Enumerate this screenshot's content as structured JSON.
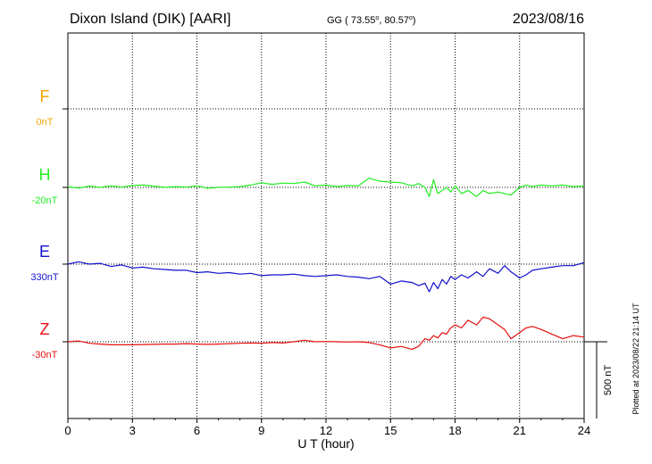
{
  "header": {
    "station": "Dixon Island (DIK)  [AARI]",
    "coords": "GG ( 73.55",
    "coords_mid": ",  80.57",
    "coords_end": ")",
    "date": "2023/08/16"
  },
  "side_note": "Plotted at 2023/08/22 21:14 UT",
  "colors": {
    "F": "#f5a500",
    "H": "#22ee22",
    "E": "#1010cc",
    "Z": "#e81010",
    "axis": "#000000"
  },
  "chart_data": {
    "type": "line",
    "xlabel": "U T (hour)",
    "xlim": [
      0,
      24
    ],
    "x_ticks": [
      "0",
      "3",
      "6",
      "9",
      "12",
      "15",
      "18",
      "21",
      "24"
    ],
    "scale_label": "500 nT",
    "scale_nT": 500,
    "channels": [
      {
        "name": "F",
        "offset_label": "0nT",
        "color_key": "F",
        "baseline_nT": 0
      },
      {
        "name": "H",
        "offset_label": "-20nT",
        "color_key": "H",
        "baseline_nT": -20
      },
      {
        "name": "E",
        "offset_label": "330nT",
        "color_key": "E",
        "baseline_nT": 330
      },
      {
        "name": "Z",
        "offset_label": "-30nT",
        "color_key": "Z",
        "baseline_nT": -30
      }
    ],
    "series": [
      {
        "name": "H",
        "x": [
          0,
          0.5,
          1,
          1.5,
          2,
          2.5,
          3,
          3.5,
          4,
          4.5,
          5,
          5.5,
          6,
          6.5,
          7,
          7.5,
          8,
          8.5,
          9,
          9.5,
          10,
          10.5,
          11,
          11.5,
          12,
          12.5,
          13,
          13.5,
          14,
          14.5,
          15,
          15.5,
          16,
          16.3,
          16.6,
          16.8,
          17,
          17.2,
          17.4,
          17.6,
          17.8,
          18,
          18.3,
          18.6,
          19,
          19.3,
          19.6,
          20,
          20.3,
          20.6,
          21,
          21.3,
          21.6,
          22,
          22.5,
          23,
          23.5,
          24
        ],
        "values": [
          -15,
          -25,
          -12,
          -20,
          -10,
          -18,
          -8,
          -5,
          -12,
          -20,
          -15,
          -18,
          -10,
          -25,
          -20,
          -18,
          -15,
          -5,
          10,
          0,
          8,
          5,
          15,
          -10,
          -5,
          -15,
          -8,
          -10,
          40,
          20,
          15,
          10,
          -10,
          5,
          -20,
          -80,
          30,
          -60,
          -40,
          -20,
          -50,
          -10,
          -60,
          -40,
          -80,
          -40,
          -60,
          -50,
          -60,
          -70,
          -20,
          -5,
          -15,
          -5,
          -10,
          -5,
          -15,
          -10
        ]
      },
      {
        "name": "E",
        "x": [
          0,
          0.5,
          1,
          1.5,
          2,
          2.5,
          3,
          3.5,
          4,
          4.5,
          5,
          5.5,
          6,
          6.5,
          7,
          7.5,
          8,
          8.5,
          9,
          9.5,
          10,
          10.5,
          11,
          11.5,
          12,
          12.5,
          13,
          13.5,
          14,
          14.5,
          15,
          15.5,
          16,
          16.3,
          16.6,
          16.8,
          17,
          17.2,
          17.4,
          17.6,
          17.8,
          18,
          18.3,
          18.6,
          19,
          19.3,
          19.6,
          20,
          20.3,
          20.6,
          21,
          21.3,
          21.6,
          22,
          22.5,
          23,
          23.5,
          24
        ],
        "values": [
          330,
          345,
          330,
          335,
          315,
          325,
          305,
          310,
          300,
          295,
          290,
          290,
          275,
          280,
          270,
          275,
          265,
          270,
          255,
          260,
          260,
          265,
          255,
          250,
          255,
          260,
          250,
          245,
          235,
          250,
          200,
          220,
          210,
          190,
          205,
          150,
          210,
          170,
          230,
          200,
          250,
          230,
          260,
          240,
          280,
          250,
          300,
          270,
          320,
          280,
          240,
          260,
          290,
          300,
          310,
          320,
          320,
          340
        ]
      },
      {
        "name": "Z",
        "x": [
          0,
          0.5,
          1,
          1.5,
          2,
          2.5,
          3,
          3.5,
          4,
          4.5,
          5,
          5.5,
          6,
          6.5,
          7,
          7.5,
          8,
          8.5,
          9,
          9.5,
          10,
          10.5,
          11,
          11.5,
          12,
          12.5,
          13,
          13.5,
          14,
          14.5,
          15,
          15.5,
          16,
          16.3,
          16.6,
          16.8,
          17,
          17.2,
          17.4,
          17.6,
          17.8,
          18,
          18.3,
          18.6,
          19,
          19.3,
          19.6,
          20,
          20.3,
          20.6,
          21,
          21.3,
          21.6,
          22,
          22.5,
          23,
          23.5,
          24
        ],
        "values": [
          -30,
          -25,
          -40,
          -45,
          -50,
          -50,
          -50,
          -48,
          -47,
          -45,
          -45,
          -42,
          -45,
          -47,
          -45,
          -42,
          -40,
          -38,
          -40,
          -35,
          -38,
          -30,
          -20,
          -30,
          -28,
          -30,
          -32,
          -30,
          -35,
          -50,
          -70,
          -60,
          -80,
          -60,
          -10,
          -20,
          10,
          -5,
          30,
          20,
          60,
          80,
          60,
          110,
          80,
          130,
          120,
          80,
          50,
          -10,
          30,
          60,
          70,
          50,
          20,
          -10,
          10,
          0
        ]
      }
    ]
  }
}
